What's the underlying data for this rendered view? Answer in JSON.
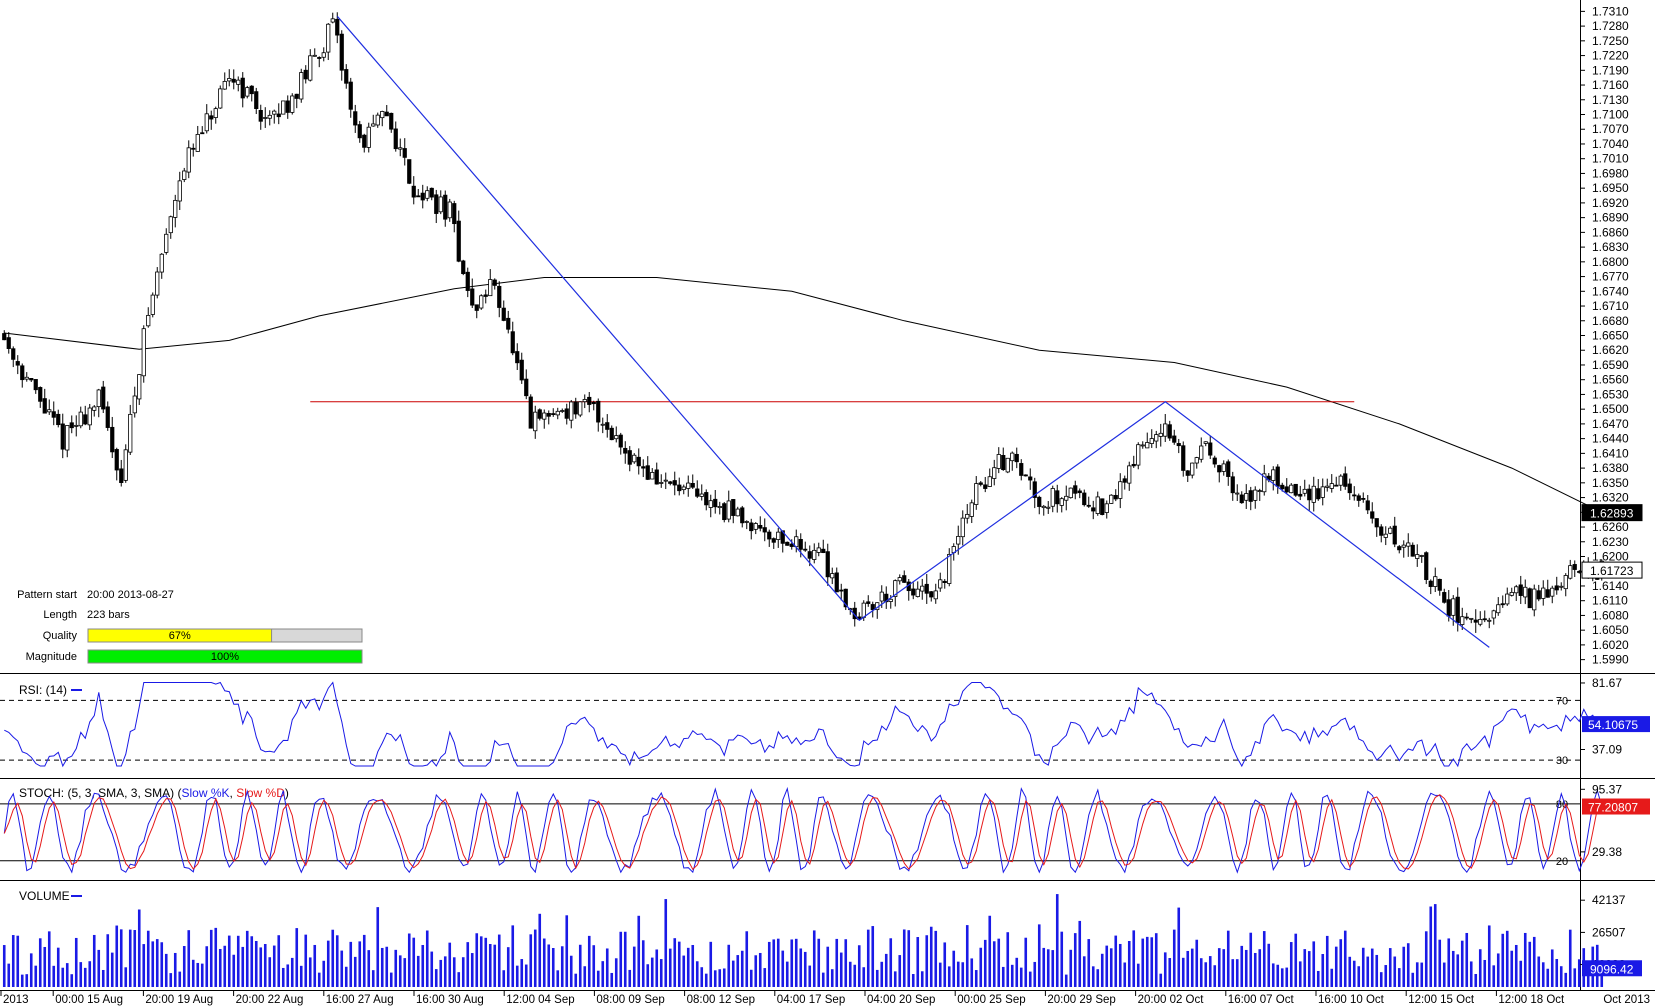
{
  "chart_data": {
    "type": "candlestick",
    "symbol_hint": "",
    "main_panel": {
      "y_axis_labels": [
        "1.7310",
        "1.7280",
        "1.7250",
        "1.7220",
        "1.7190",
        "1.7160",
        "1.7130",
        "1.7100",
        "1.7070",
        "1.7040",
        "1.7010",
        "1.6980",
        "1.6950",
        "1.6920",
        "1.6890",
        "1.6860",
        "1.6830",
        "1.6800",
        "1.6770",
        "1.6740",
        "1.6710",
        "1.6680",
        "1.6650",
        "1.6620",
        "1.6590",
        "1.6560",
        "1.6530",
        "1.6500",
        "1.6470",
        "1.6440",
        "1.6410",
        "1.6380",
        "1.6350",
        "1.6320",
        "1.6290",
        "1.6260",
        "1.6230",
        "1.6200",
        "1.6170",
        "1.6140",
        "1.6110",
        "1.6080",
        "1.6050",
        "1.6020",
        "1.5990"
      ],
      "ylim": [
        1.5975,
        1.7325
      ],
      "price_badges": [
        {
          "label": "1.62893",
          "value": 1.62893,
          "style": "dark"
        },
        {
          "label": "1.61723",
          "value": 1.61723,
          "style": "light"
        }
      ],
      "support_level": 1.6515,
      "pattern_points": [
        {
          "bar": 74,
          "price": 1.73
        },
        {
          "bar": 190,
          "price": 1.607
        },
        {
          "bar": 258,
          "price": 1.6515
        },
        {
          "bar": 330,
          "price": 1.6015
        }
      ],
      "moving_average": [
        {
          "bar": 0,
          "price": 1.6655
        },
        {
          "bar": 30,
          "price": 1.6622
        },
        {
          "bar": 50,
          "price": 1.664
        },
        {
          "bar": 70,
          "price": 1.669
        },
        {
          "bar": 100,
          "price": 1.6745
        },
        {
          "bar": 120,
          "price": 1.6768
        },
        {
          "bar": 145,
          "price": 1.6768
        },
        {
          "bar": 175,
          "price": 1.674
        },
        {
          "bar": 200,
          "price": 1.668
        },
        {
          "bar": 230,
          "price": 1.662
        },
        {
          "bar": 260,
          "price": 1.6595
        },
        {
          "bar": 285,
          "price": 1.6545
        },
        {
          "bar": 310,
          "price": 1.647
        },
        {
          "bar": 335,
          "price": 1.638
        },
        {
          "bar": 355,
          "price": 1.629
        }
      ],
      "info_box": {
        "rows": [
          {
            "label": "Pattern start",
            "value": "20:00 2013-08-27"
          },
          {
            "label": "Length",
            "value": "223 bars"
          },
          {
            "label": "Quality",
            "bar_text": "67%",
            "fraction": 0.67,
            "color": "#ffff00"
          },
          {
            "label": "Magnitude",
            "bar_text": "100%",
            "fraction": 1.0,
            "color": "#00ee00"
          }
        ]
      }
    },
    "rsi_panel": {
      "label": "RSI: (14)",
      "axis_labels": [
        {
          "text": "81.67",
          "value": 81.67
        },
        {
          "text": "37.09",
          "value": 37.09
        }
      ],
      "inline_levels": [
        {
          "text": "70",
          "value": 70
        },
        {
          "text": "30",
          "value": 30
        }
      ],
      "badge": {
        "label": "54.10675",
        "value": 54.10675
      },
      "ylim": [
        22,
        85
      ]
    },
    "stoch_panel": {
      "label_prefix": "STOCH: (5, 3, SMA, 3, SMA) (",
      "k_label": "Slow %K",
      "sep": ", ",
      "d_label": "Slow %D",
      "label_suffix": ")",
      "axis_labels": [
        {
          "text": "95.37",
          "value": 95.37
        },
        {
          "text": "29.38",
          "value": 29.38
        }
      ],
      "inline_levels": [
        {
          "text": "80",
          "value": 80
        },
        {
          "text": "20",
          "value": 20
        }
      ],
      "badge": {
        "label": "77.20807",
        "value": 77.20807
      },
      "ylim": [
        5,
        102
      ]
    },
    "volume_panel": {
      "label": "VOLUME",
      "axis_labels": [
        {
          "text": "42137",
          "value": 42137
        },
        {
          "text": "26507",
          "value": 26507
        },
        {
          "text": "10938",
          "value": 10938
        }
      ],
      "badge": {
        "label": "9096.42",
        "value": 9096.42
      },
      "ylim": [
        0,
        50000
      ]
    },
    "x_axis_labels": [
      "2013",
      "00:00 15 Aug",
      "20:00 19 Aug",
      "20:00 22 Aug",
      "16:00 27 Aug",
      "16:00 30 Aug",
      "12:00 04 Sep",
      "08:00 09 Sep",
      "08:00 12 Sep",
      "04:00 17 Sep",
      "04:00 20 Sep",
      "00:00 25 Sep",
      "20:00 29 Sep",
      "20:00 02 Oct",
      "16:00 07 Oct",
      "16:00 10 Oct",
      "12:00 15 Oct",
      "12:00 18 Oct"
    ],
    "x_axis_corner": "Oct 2013",
    "colors": {
      "up_body": "#ffffff",
      "down_body": "#000000",
      "pattern": "#1f2fe0",
      "support": "#cc0000",
      "moving_average": "#000000",
      "rsi": "#1a1ae6",
      "stoch_k": "#1a1ae6",
      "stoch_d": "#e61a1a",
      "volume": "#1a1ae6"
    }
  }
}
